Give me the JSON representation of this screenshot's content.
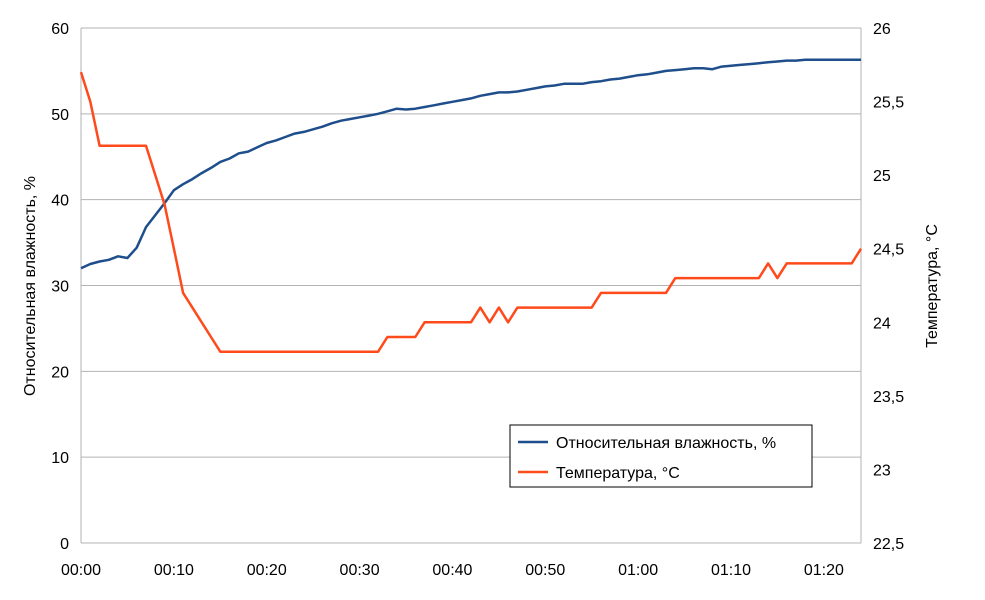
{
  "chart_data": {
    "type": "line",
    "title": "",
    "xlabel": "",
    "ylabel": "Относительная влажность, %",
    "y2label": "Температура, °C",
    "xlim": [
      0,
      84
    ],
    "ylim": [
      0,
      60
    ],
    "y2lim": [
      22.5,
      26
    ],
    "grid": true,
    "legend": "bottom-right",
    "x_ticks": [
      {
        "value": 0,
        "label": "00:00"
      },
      {
        "value": 10,
        "label": "00:10"
      },
      {
        "value": 20,
        "label": "00:20"
      },
      {
        "value": 30,
        "label": "00:30"
      },
      {
        "value": 40,
        "label": "00:40"
      },
      {
        "value": 50,
        "label": "00:50"
      },
      {
        "value": 60,
        "label": "01:00"
      },
      {
        "value": 70,
        "label": "01:10"
      },
      {
        "value": 80,
        "label": "01:20"
      }
    ],
    "y_ticks": [
      {
        "value": 0,
        "label": "0"
      },
      {
        "value": 10,
        "label": "10"
      },
      {
        "value": 20,
        "label": "20"
      },
      {
        "value": 30,
        "label": "30"
      },
      {
        "value": 40,
        "label": "40"
      },
      {
        "value": 50,
        "label": "50"
      },
      {
        "value": 60,
        "label": "60"
      }
    ],
    "y2_ticks": [
      {
        "value": 22.5,
        "label": "22,5"
      },
      {
        "value": 23,
        "label": "23"
      },
      {
        "value": 23.5,
        "label": "23,5"
      },
      {
        "value": 24,
        "label": "24"
      },
      {
        "value": 24.5,
        "label": "24,5"
      },
      {
        "value": 25,
        "label": "25"
      },
      {
        "value": 25.5,
        "label": "25,5"
      },
      {
        "value": 26,
        "label": "26"
      }
    ],
    "series": [
      {
        "name": "Относительная влажность, %",
        "axis": "left",
        "color": "#1f4e8c",
        "x": [
          0,
          1,
          2,
          3,
          4,
          5,
          6,
          7,
          8,
          9,
          10,
          11,
          12,
          13,
          14,
          15,
          16,
          17,
          18,
          19,
          20,
          21,
          22,
          23,
          24,
          25,
          26,
          27,
          28,
          29,
          30,
          31,
          32,
          33,
          34,
          35,
          36,
          37,
          38,
          39,
          40,
          41,
          42,
          43,
          44,
          45,
          46,
          47,
          48,
          49,
          50,
          51,
          52,
          53,
          54,
          55,
          56,
          57,
          58,
          59,
          60,
          61,
          62,
          63,
          64,
          65,
          66,
          67,
          68,
          69,
          70,
          71,
          72,
          73,
          74,
          75,
          76,
          77,
          78,
          79,
          80,
          81,
          82,
          83,
          84
        ],
        "y": [
          32,
          32.5,
          32.8,
          33,
          33.4,
          33.2,
          34.4,
          36.8,
          38.2,
          39.6,
          41.1,
          41.8,
          42.4,
          43.1,
          43.7,
          44.4,
          44.8,
          45.4,
          45.6,
          46.1,
          46.6,
          46.9,
          47.3,
          47.7,
          47.9,
          48.2,
          48.5,
          48.9,
          49.2,
          49.4,
          49.6,
          49.8,
          50,
          50.3,
          50.6,
          50.5,
          50.6,
          50.8,
          51,
          51.2,
          51.4,
          51.6,
          51.8,
          52.1,
          52.3,
          52.5,
          52.5,
          52.6,
          52.8,
          53,
          53.2,
          53.3,
          53.5,
          53.5,
          53.5,
          53.7,
          53.8,
          54,
          54.1,
          54.3,
          54.5,
          54.6,
          54.8,
          55,
          55.1,
          55.2,
          55.3,
          55.3,
          55.2,
          55.5,
          55.6,
          55.7,
          55.8,
          55.9,
          56,
          56.1,
          56.2,
          56.2,
          56.3,
          56.3,
          56.3,
          56.3,
          56.3,
          56.3,
          56.3
        ]
      },
      {
        "name": "Температура, °C",
        "axis": "right",
        "color": "#ff4a1c",
        "x": [
          0,
          1,
          2,
          3,
          4,
          5,
          6,
          7,
          8,
          9,
          10,
          11,
          12,
          13,
          14,
          15,
          16,
          17,
          18,
          19,
          20,
          21,
          22,
          23,
          24,
          25,
          26,
          27,
          28,
          29,
          30,
          31,
          32,
          33,
          34,
          35,
          36,
          37,
          38,
          39,
          40,
          41,
          42,
          43,
          44,
          45,
          46,
          47,
          48,
          49,
          50,
          51,
          52,
          53,
          54,
          55,
          56,
          57,
          58,
          59,
          60,
          61,
          62,
          63,
          64,
          65,
          66,
          67,
          68,
          69,
          70,
          71,
          72,
          73,
          74,
          75,
          76,
          77,
          78,
          79,
          80,
          81,
          82,
          83,
          84
        ],
        "y": [
          25.7,
          25.5,
          25.2,
          25.2,
          25.2,
          25.2,
          25.2,
          25.2,
          25,
          24.8,
          24.5,
          24.2,
          24.1,
          24,
          23.9,
          23.8,
          23.8,
          23.8,
          23.8,
          23.8,
          23.8,
          23.8,
          23.8,
          23.8,
          23.8,
          23.8,
          23.8,
          23.8,
          23.8,
          23.8,
          23.8,
          23.8,
          23.8,
          23.9,
          23.9,
          23.9,
          23.9,
          24,
          24,
          24,
          24,
          24,
          24,
          24.1,
          24,
          24.1,
          24,
          24.1,
          24.1,
          24.1,
          24.1,
          24.1,
          24.1,
          24.1,
          24.1,
          24.1,
          24.2,
          24.2,
          24.2,
          24.2,
          24.2,
          24.2,
          24.2,
          24.2,
          24.3,
          24.3,
          24.3,
          24.3,
          24.3,
          24.3,
          24.3,
          24.3,
          24.3,
          24.3,
          24.4,
          24.3,
          24.4,
          24.4,
          24.4,
          24.4,
          24.4,
          24.4,
          24.4,
          24.4,
          24.5
        ]
      }
    ]
  }
}
